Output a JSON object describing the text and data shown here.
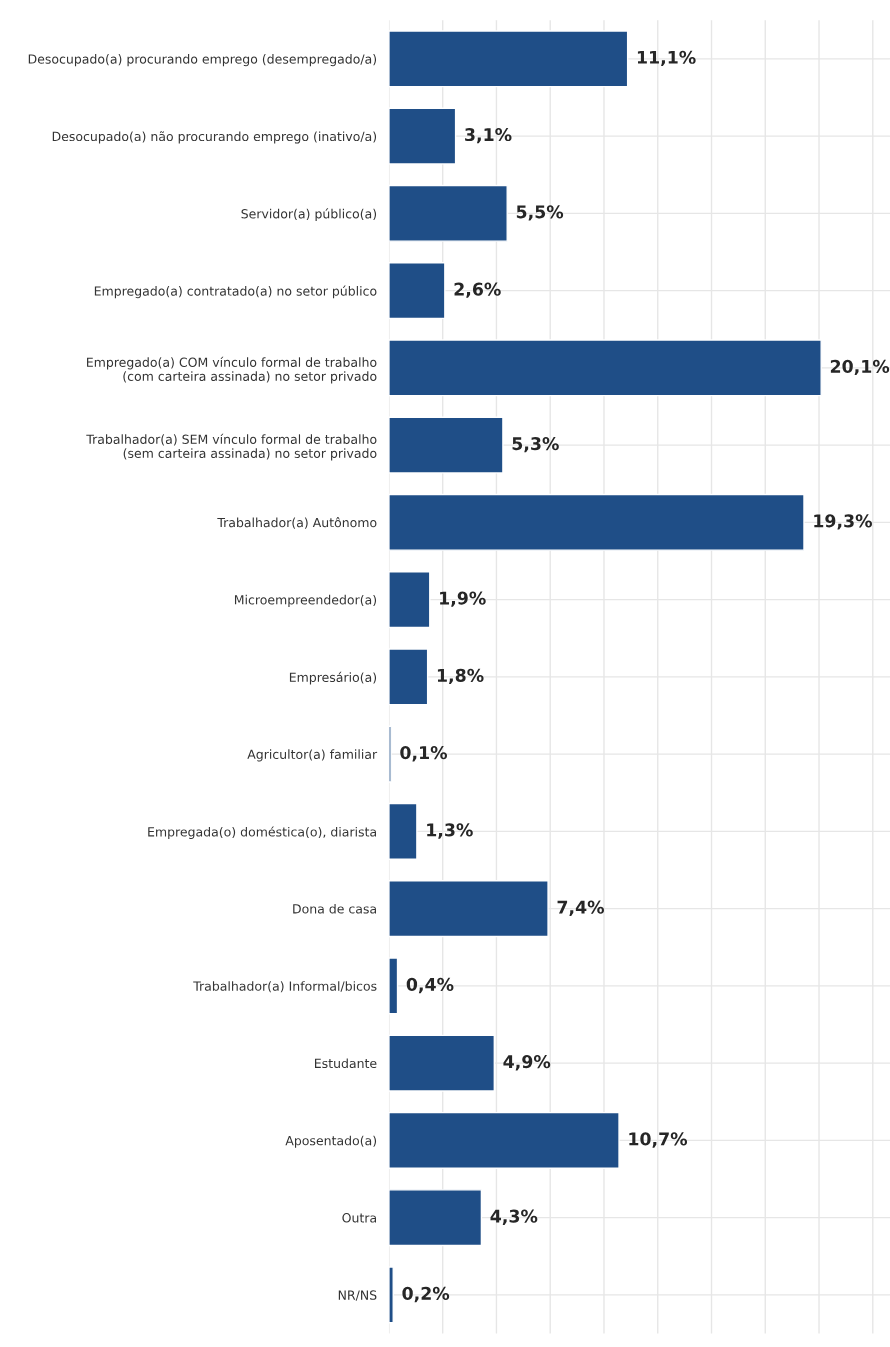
{
  "chart_data": {
    "type": "bar",
    "orientation": "horizontal",
    "categories": [
      "Desocupado(a) procurando emprego (desempregado/a)",
      "Desocupado(a) não procurando emprego (inativo/a)",
      "Servidor(a) público(a)",
      "Empregado(a) contratado(a) no setor público",
      "Empregado(a) COM vínculo formal de trabalho\n(com carteira assinada) no setor privado",
      "Trabalhador(a) SEM vínculo formal de trabalho\n(sem carteira assinada) no setor privado",
      "Trabalhador(a) Autônomo",
      "Microempreendedor(a)",
      "Empresário(a)",
      "Agricultor(a) familiar",
      "Empregada(o) doméstica(o), diarista",
      "Dona de casa",
      "Trabalhador(a) Informal/bicos",
      "Estudante",
      "Aposentado(a)",
      "Outra",
      "NR/NS"
    ],
    "values": [
      11.1,
      3.1,
      5.5,
      2.6,
      20.1,
      5.3,
      19.3,
      1.9,
      1.8,
      0.1,
      1.3,
      7.4,
      0.4,
      4.9,
      10.7,
      4.3,
      0.2
    ],
    "value_labels": [
      "11,1%",
      "3,1%",
      "5,5%",
      "2,6%",
      "20,1%",
      "5,3%",
      "19,3%",
      "1,9%",
      "1,8%",
      "0,1%",
      "1,3%",
      "7,4%",
      "0,4%",
      "4,9%",
      "10,7%",
      "4,3%",
      "0,2%"
    ],
    "color": "#1f4e87",
    "xlim": [
      0,
      23.3
    ],
    "xticks": [
      {
        "value": 0,
        "label": null
      },
      {
        "value": 2.5,
        "label": null
      },
      {
        "value": 5,
        "label": null
      },
      {
        "value": 7.5,
        "label": null
      },
      {
        "value": 10,
        "label": null
      },
      {
        "value": 12.5,
        "label": null
      },
      {
        "value": 15,
        "label": null
      },
      {
        "value": 17.5,
        "label": null
      },
      {
        "value": 20,
        "label": null
      },
      {
        "value": 22.5,
        "label": null
      }
    ],
    "tick_labels": "y",
    "grid": true,
    "legend": false
  }
}
